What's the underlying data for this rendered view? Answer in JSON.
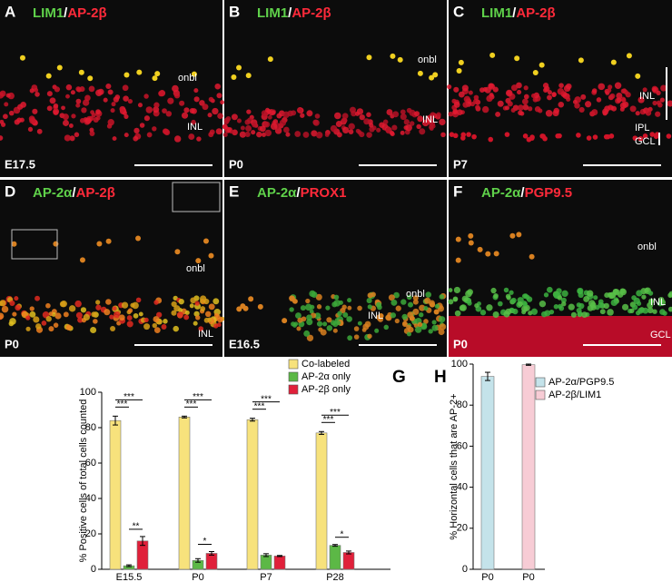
{
  "panels": [
    {
      "letter": "A",
      "markers": [
        {
          "text": "LIM1",
          "color": "#5fd14a"
        },
        {
          "text": "/",
          "color": "#ffffff"
        },
        {
          "text": "AP-2β",
          "color": "#ff2a3a"
        }
      ],
      "labels": [
        "onbl",
        "INL"
      ],
      "stage": "E17.5"
    },
    {
      "letter": "B",
      "markers": [
        {
          "text": "LIM1",
          "color": "#5fd14a"
        },
        {
          "text": "/",
          "color": "#ffffff"
        },
        {
          "text": "AP-2β",
          "color": "#ff2a3a"
        }
      ],
      "labels": [
        "onbl",
        "INL"
      ],
      "stage": "P0"
    },
    {
      "letter": "C",
      "markers": [
        {
          "text": "LIM1",
          "color": "#5fd14a"
        },
        {
          "text": "/",
          "color": "#ffffff"
        },
        {
          "text": "AP-2β",
          "color": "#ff2a3a"
        }
      ],
      "labels": [
        "INL",
        "IPL",
        "GCL"
      ],
      "stage": "P7"
    },
    {
      "letter": "D",
      "markers": [
        {
          "text": "AP-2α",
          "color": "#5fd14a"
        },
        {
          "text": "/",
          "color": "#ffffff"
        },
        {
          "text": "AP-2β",
          "color": "#ff2a3a"
        }
      ],
      "labels": [
        "onbl",
        "INL"
      ],
      "stage": "P0"
    },
    {
      "letter": "E",
      "markers": [
        {
          "text": "AP-2α",
          "color": "#5fd14a"
        },
        {
          "text": "/",
          "color": "#ffffff"
        },
        {
          "text": "PROX1",
          "color": "#ff2a3a"
        }
      ],
      "labels": [
        "onbl",
        "INL"
      ],
      "stage": "E16.5"
    },
    {
      "letter": "F",
      "markers": [
        {
          "text": "AP-2α",
          "color": "#5fd14a"
        },
        {
          "text": "/",
          "color": "#ffffff"
        },
        {
          "text": "PGP9.5",
          "color": "#ff2a3a"
        }
      ],
      "labels": [
        "onbl",
        "INL",
        "GCL"
      ],
      "stage": "P0"
    }
  ],
  "chart_data": [
    {
      "type": "bar",
      "letter": "G",
      "ylabel": "% Positive cells of total cells counted",
      "categories": [
        "E15.5",
        "P0",
        "P7",
        "P28"
      ],
      "series": [
        {
          "name": "Co-labeled",
          "color": "#f7e27c",
          "values": [
            84,
            86,
            84.5,
            77
          ],
          "errors": [
            2.5,
            0.5,
            0.8,
            0.8
          ]
        },
        {
          "name": "AP-2α only",
          "color": "#5cb846",
          "values": [
            2,
            5,
            8,
            13.5
          ],
          "errors": [
            0.5,
            1,
            0.8,
            0.5
          ]
        },
        {
          "name": "AP-2β only",
          "color": "#e0203a",
          "values": [
            16,
            9,
            7.5,
            9.5
          ],
          "errors": [
            2.5,
            1,
            0.3,
            0.8
          ]
        }
      ],
      "significance": [
        [
          "***",
          "***",
          "**"
        ],
        [
          "***",
          "***",
          "*"
        ],
        [
          "***",
          "***"
        ],
        [
          "***",
          "***",
          "*"
        ]
      ],
      "ylim": [
        0,
        100
      ],
      "yticks": [
        0,
        20,
        40,
        60,
        80,
        100
      ]
    },
    {
      "type": "bar",
      "letter": "H",
      "ylabel": "% Horizontal cells that are AP-2+",
      "categories": [
        "P0",
        "P0"
      ],
      "series": [
        {
          "name": "AP-2α/PGP9.5",
          "color": "#c4e3ea",
          "values": [
            94,
            null
          ],
          "errors": [
            2,
            null
          ]
        },
        {
          "name": "AP-2β/LIM1",
          "color": "#f7ccd5",
          "values": [
            null,
            99.7
          ],
          "errors": [
            null,
            0.3
          ]
        }
      ],
      "ylim": [
        0,
        100
      ],
      "yticks": [
        0,
        20,
        40,
        60,
        80,
        100
      ]
    }
  ]
}
